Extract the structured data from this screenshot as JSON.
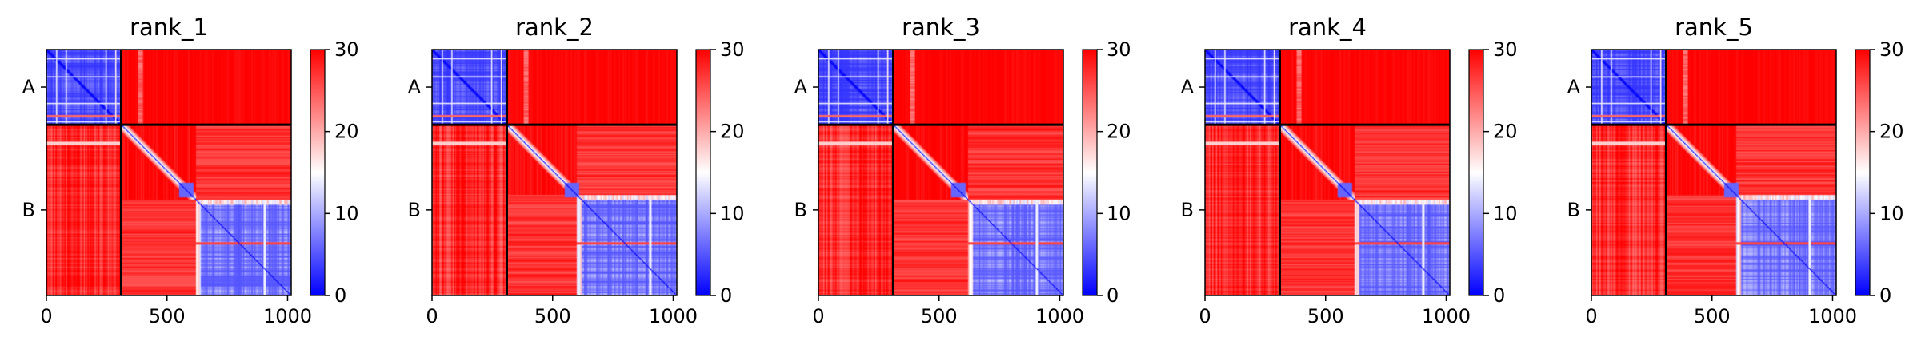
{
  "chart_data": [
    {
      "type": "heatmap",
      "title": "rank_1",
      "matrix_size": 1015,
      "chain_break": 310,
      "xticks": [
        0,
        500,
        1000
      ],
      "yticks": [
        {
          "label": "A",
          "value": 155
        },
        {
          "label": "B",
          "value": 662
        }
      ],
      "xlim": [
        0,
        1015
      ],
      "ylim": [
        0,
        1015
      ],
      "colorbar": {
        "range": [
          0,
          30
        ],
        "ticks": [
          0,
          10,
          20,
          30
        ],
        "colormap": "bwr"
      },
      "colors": {
        "low": "#0000ff",
        "mid": "#ffffff",
        "high": "#ff0000"
      },
      "regions": [
        {
          "rows": [
            0,
            310
          ],
          "cols": [
            0,
            310
          ],
          "typical_value": 6
        },
        {
          "rows": [
            0,
            310
          ],
          "cols": [
            310,
            1015
          ],
          "typical_value": 30
        },
        {
          "rows": [
            310,
            1015
          ],
          "cols": [
            0,
            310
          ],
          "typical_value": 28
        },
        {
          "rows": [
            310,
            620
          ],
          "cols": [
            310,
            620
          ],
          "typical_value": 26
        },
        {
          "rows": [
            620,
            1015
          ],
          "cols": [
            620,
            1015
          ],
          "typical_value": 7
        }
      ]
    },
    {
      "type": "heatmap",
      "title": "rank_2",
      "matrix_size": 1015,
      "chain_break": 310,
      "xticks": [
        0,
        500,
        1000
      ],
      "yticks": [
        {
          "label": "A",
          "value": 155
        },
        {
          "label": "B",
          "value": 662
        }
      ],
      "xlim": [
        0,
        1015
      ],
      "ylim": [
        0,
        1015
      ],
      "colorbar": {
        "range": [
          0,
          30
        ],
        "ticks": [
          0,
          10,
          20,
          30
        ],
        "colormap": "bwr"
      },
      "colors": {
        "low": "#0000ff",
        "mid": "#ffffff",
        "high": "#ff0000"
      },
      "regions": [
        {
          "rows": [
            0,
            310
          ],
          "cols": [
            0,
            310
          ],
          "typical_value": 6
        },
        {
          "rows": [
            0,
            310
          ],
          "cols": [
            310,
            1015
          ],
          "typical_value": 30
        },
        {
          "rows": [
            310,
            1015
          ],
          "cols": [
            0,
            310
          ],
          "typical_value": 28
        },
        {
          "rows": [
            310,
            600
          ],
          "cols": [
            310,
            600
          ],
          "typical_value": 26
        },
        {
          "rows": [
            600,
            1015
          ],
          "cols": [
            600,
            1015
          ],
          "typical_value": 7
        }
      ]
    },
    {
      "type": "heatmap",
      "title": "rank_3",
      "matrix_size": 1015,
      "chain_break": 310,
      "xticks": [
        0,
        500,
        1000
      ],
      "yticks": [
        {
          "label": "A",
          "value": 155
        },
        {
          "label": "B",
          "value": 662
        }
      ],
      "xlim": [
        0,
        1015
      ],
      "ylim": [
        0,
        1015
      ],
      "colorbar": {
        "range": [
          0,
          30
        ],
        "ticks": [
          0,
          10,
          20,
          30
        ],
        "colormap": "bwr"
      },
      "colors": {
        "low": "#0000ff",
        "mid": "#ffffff",
        "high": "#ff0000"
      },
      "regions": [
        {
          "rows": [
            0,
            310
          ],
          "cols": [
            0,
            310
          ],
          "typical_value": 6
        },
        {
          "rows": [
            0,
            310
          ],
          "cols": [
            310,
            1015
          ],
          "typical_value": 30
        },
        {
          "rows": [
            310,
            1015
          ],
          "cols": [
            0,
            310
          ],
          "typical_value": 25
        },
        {
          "rows": [
            310,
            620
          ],
          "cols": [
            310,
            620
          ],
          "typical_value": 26
        },
        {
          "rows": [
            620,
            1015
          ],
          "cols": [
            620,
            1015
          ],
          "typical_value": 7
        }
      ]
    },
    {
      "type": "heatmap",
      "title": "rank_4",
      "matrix_size": 1015,
      "chain_break": 310,
      "xticks": [
        0,
        500,
        1000
      ],
      "yticks": [
        {
          "label": "A",
          "value": 155
        },
        {
          "label": "B",
          "value": 662
        }
      ],
      "xlim": [
        0,
        1015
      ],
      "ylim": [
        0,
        1015
      ],
      "colorbar": {
        "range": [
          0,
          30
        ],
        "ticks": [
          0,
          10,
          20,
          30
        ],
        "colormap": "bwr"
      },
      "colors": {
        "low": "#0000ff",
        "mid": "#ffffff",
        "high": "#ff0000"
      },
      "regions": [
        {
          "rows": [
            0,
            310
          ],
          "cols": [
            0,
            310
          ],
          "typical_value": 6
        },
        {
          "rows": [
            0,
            310
          ],
          "cols": [
            310,
            1015
          ],
          "typical_value": 30
        },
        {
          "rows": [
            310,
            1015
          ],
          "cols": [
            0,
            310
          ],
          "typical_value": 27
        },
        {
          "rows": [
            310,
            620
          ],
          "cols": [
            310,
            620
          ],
          "typical_value": 26
        },
        {
          "rows": [
            620,
            1015
          ],
          "cols": [
            620,
            1015
          ],
          "typical_value": 7
        }
      ]
    },
    {
      "type": "heatmap",
      "title": "rank_5",
      "matrix_size": 1015,
      "chain_break": 310,
      "xticks": [
        0,
        500,
        1000
      ],
      "yticks": [
        {
          "label": "A",
          "value": 155
        },
        {
          "label": "B",
          "value": 662
        }
      ],
      "xlim": [
        0,
        1015
      ],
      "ylim": [
        0,
        1015
      ],
      "colorbar": {
        "range": [
          0,
          30
        ],
        "ticks": [
          0,
          10,
          20,
          30
        ],
        "colormap": "bwr"
      },
      "colors": {
        "low": "#0000ff",
        "mid": "#ffffff",
        "high": "#ff0000"
      },
      "regions": [
        {
          "rows": [
            0,
            310
          ],
          "cols": [
            0,
            310
          ],
          "typical_value": 6
        },
        {
          "rows": [
            0,
            310
          ],
          "cols": [
            310,
            1015
          ],
          "typical_value": 30
        },
        {
          "rows": [
            310,
            1015
          ],
          "cols": [
            0,
            310
          ],
          "typical_value": 28
        },
        {
          "rows": [
            310,
            600
          ],
          "cols": [
            310,
            600
          ],
          "typical_value": 26
        },
        {
          "rows": [
            600,
            1015
          ],
          "cols": [
            600,
            1015
          ],
          "typical_value": 7
        }
      ]
    }
  ]
}
